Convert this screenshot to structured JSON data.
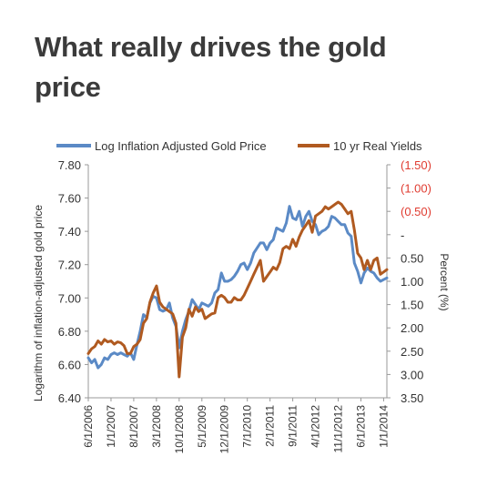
{
  "page": {
    "title": "What really drives the gold price"
  },
  "chart_data": {
    "type": "line",
    "title": "",
    "xlabel": "",
    "ylabel_left": "Logarithm of inflation-adjusted gold price",
    "ylabel_right": "Percent (%)",
    "left_axis": {
      "ticks": [
        "6.40",
        "6.60",
        "6.80",
        "7.00",
        "7.20",
        "7.40",
        "7.60",
        "7.80"
      ],
      "range": [
        6.4,
        7.8
      ]
    },
    "right_axis": {
      "tick_labels": [
        "(1.50)",
        "(1.00)",
        "(0.50)",
        "-",
        "0.50",
        "1.00",
        "1.50",
        "2.00",
        "2.50",
        "3.00",
        "3.50"
      ],
      "tick_values": [
        -1.5,
        -1.0,
        -0.5,
        0,
        0.5,
        1.0,
        1.5,
        2.0,
        2.5,
        3.0,
        3.5
      ],
      "inverted": true,
      "negative_label_color": "#e03c31"
    },
    "x_tick_labels": [
      "6/1/2006",
      "1/1/2007",
      "8/1/2007",
      "3/1/2008",
      "10/1/2008",
      "5/1/2009",
      "12/1/2009",
      "7/1/2010",
      "2/1/2011",
      "9/1/2011",
      "4/1/2012",
      "11/1/2012",
      "6/1/2013",
      "1/1/2014"
    ],
    "legend_position": "top",
    "grid": false,
    "series": [
      {
        "name": "Log Inflation Adjusted Gold Price",
        "axis": "left",
        "color": "#5b8ac6",
        "points": [
          [
            "2006-06",
            6.64
          ],
          [
            "2006-07",
            6.61
          ],
          [
            "2006-08",
            6.63
          ],
          [
            "2006-09",
            6.58
          ],
          [
            "2006-10",
            6.6
          ],
          [
            "2006-11",
            6.64
          ],
          [
            "2006-12",
            6.63
          ],
          [
            "2007-01",
            6.66
          ],
          [
            "2007-02",
            6.67
          ],
          [
            "2007-03",
            6.66
          ],
          [
            "2007-04",
            6.67
          ],
          [
            "2007-05",
            6.66
          ],
          [
            "2007-06",
            6.65
          ],
          [
            "2007-07",
            6.67
          ],
          [
            "2007-08",
            6.63
          ],
          [
            "2007-09",
            6.72
          ],
          [
            "2007-10",
            6.8
          ],
          [
            "2007-11",
            6.9
          ],
          [
            "2007-12",
            6.88
          ],
          [
            "2008-01",
            6.97
          ],
          [
            "2008-02",
            7.01
          ],
          [
            "2008-03",
            7.0
          ],
          [
            "2008-04",
            6.93
          ],
          [
            "2008-05",
            6.92
          ],
          [
            "2008-06",
            6.93
          ],
          [
            "2008-07",
            6.97
          ],
          [
            "2008-08",
            6.88
          ],
          [
            "2008-09",
            6.83
          ],
          [
            "2008-10",
            6.7
          ],
          [
            "2008-11",
            6.8
          ],
          [
            "2008-12",
            6.87
          ],
          [
            "2009-01",
            6.92
          ],
          [
            "2009-02",
            6.99
          ],
          [
            "2009-03",
            6.96
          ],
          [
            "2009-04",
            6.93
          ],
          [
            "2009-05",
            6.97
          ],
          [
            "2009-06",
            6.96
          ],
          [
            "2009-07",
            6.95
          ],
          [
            "2009-08",
            6.97
          ],
          [
            "2009-09",
            7.03
          ],
          [
            "2009-10",
            7.05
          ],
          [
            "2009-11",
            7.15
          ],
          [
            "2009-12",
            7.1
          ],
          [
            "2010-01",
            7.1
          ],
          [
            "2010-02",
            7.11
          ],
          [
            "2010-03",
            7.13
          ],
          [
            "2010-04",
            7.16
          ],
          [
            "2010-05",
            7.2
          ],
          [
            "2010-06",
            7.21
          ],
          [
            "2010-07",
            7.17
          ],
          [
            "2010-08",
            7.21
          ],
          [
            "2010-09",
            7.27
          ],
          [
            "2010-10",
            7.3
          ],
          [
            "2010-11",
            7.33
          ],
          [
            "2010-12",
            7.33
          ],
          [
            "2011-01",
            7.29
          ],
          [
            "2011-02",
            7.33
          ],
          [
            "2011-03",
            7.35
          ],
          [
            "2011-04",
            7.42
          ],
          [
            "2011-05",
            7.41
          ],
          [
            "2011-06",
            7.4
          ],
          [
            "2011-07",
            7.45
          ],
          [
            "2011-08",
            7.55
          ],
          [
            "2011-09",
            7.48
          ],
          [
            "2011-10",
            7.47
          ],
          [
            "2011-11",
            7.52
          ],
          [
            "2011-12",
            7.43
          ],
          [
            "2012-01",
            7.49
          ],
          [
            "2012-02",
            7.52
          ],
          [
            "2012-03",
            7.46
          ],
          [
            "2012-04",
            7.44
          ],
          [
            "2012-05",
            7.38
          ],
          [
            "2012-06",
            7.4
          ],
          [
            "2012-07",
            7.41
          ],
          [
            "2012-08",
            7.43
          ],
          [
            "2012-09",
            7.49
          ],
          [
            "2012-10",
            7.48
          ],
          [
            "2012-11",
            7.46
          ],
          [
            "2012-12",
            7.44
          ],
          [
            "2013-01",
            7.44
          ],
          [
            "2013-02",
            7.39
          ],
          [
            "2013-03",
            7.37
          ],
          [
            "2013-04",
            7.21
          ],
          [
            "2013-05",
            7.16
          ],
          [
            "2013-06",
            7.09
          ],
          [
            "2013-07",
            7.15
          ],
          [
            "2013-08",
            7.18
          ],
          [
            "2013-09",
            7.16
          ],
          [
            "2013-10",
            7.15
          ],
          [
            "2013-11",
            7.12
          ],
          [
            "2013-12",
            7.1
          ],
          [
            "2014-01",
            7.11
          ],
          [
            "2014-02",
            7.12
          ]
        ]
      },
      {
        "name": "10 yr Real Yields",
        "axis": "right",
        "color": "#b05a20",
        "points": [
          [
            "2006-06",
            2.55
          ],
          [
            "2006-07",
            2.45
          ],
          [
            "2006-08",
            2.4
          ],
          [
            "2006-09",
            2.28
          ],
          [
            "2006-10",
            2.35
          ],
          [
            "2006-11",
            2.25
          ],
          [
            "2006-12",
            2.3
          ],
          [
            "2007-01",
            2.28
          ],
          [
            "2007-02",
            2.35
          ],
          [
            "2007-03",
            2.3
          ],
          [
            "2007-04",
            2.32
          ],
          [
            "2007-05",
            2.38
          ],
          [
            "2007-06",
            2.55
          ],
          [
            "2007-07",
            2.55
          ],
          [
            "2007-08",
            2.4
          ],
          [
            "2007-09",
            2.35
          ],
          [
            "2007-10",
            2.25
          ],
          [
            "2007-11",
            1.9
          ],
          [
            "2007-12",
            1.8
          ],
          [
            "2008-01",
            1.45
          ],
          [
            "2008-02",
            1.25
          ],
          [
            "2008-03",
            1.1
          ],
          [
            "2008-04",
            1.45
          ],
          [
            "2008-05",
            1.55
          ],
          [
            "2008-06",
            1.6
          ],
          [
            "2008-07",
            1.65
          ],
          [
            "2008-08",
            1.7
          ],
          [
            "2008-09",
            1.9
          ],
          [
            "2008-10",
            3.05
          ],
          [
            "2008-11",
            2.2
          ],
          [
            "2008-12",
            2.0
          ],
          [
            "2009-01",
            1.6
          ],
          [
            "2009-02",
            1.75
          ],
          [
            "2009-03",
            1.55
          ],
          [
            "2009-04",
            1.65
          ],
          [
            "2009-05",
            1.6
          ],
          [
            "2009-06",
            1.8
          ],
          [
            "2009-07",
            1.75
          ],
          [
            "2009-08",
            1.7
          ],
          [
            "2009-09",
            1.68
          ],
          [
            "2009-10",
            1.35
          ],
          [
            "2009-11",
            1.3
          ],
          [
            "2009-12",
            1.35
          ],
          [
            "2010-01",
            1.45
          ],
          [
            "2010-02",
            1.45
          ],
          [
            "2010-03",
            1.35
          ],
          [
            "2010-04",
            1.4
          ],
          [
            "2010-05",
            1.4
          ],
          [
            "2010-06",
            1.3
          ],
          [
            "2010-07",
            1.15
          ],
          [
            "2010-08",
            1.0
          ],
          [
            "2010-09",
            0.85
          ],
          [
            "2010-10",
            0.7
          ],
          [
            "2010-11",
            0.55
          ],
          [
            "2010-12",
            1.0
          ],
          [
            "2011-01",
            0.9
          ],
          [
            "2011-02",
            0.8
          ],
          [
            "2011-03",
            0.7
          ],
          [
            "2011-04",
            0.75
          ],
          [
            "2011-05",
            0.6
          ],
          [
            "2011-06",
            0.3
          ],
          [
            "2011-07",
            0.25
          ],
          [
            "2011-08",
            0.3
          ],
          [
            "2011-09",
            0.1
          ],
          [
            "2011-10",
            0.25
          ],
          [
            "2011-11",
            0.05
          ],
          [
            "2011-12",
            -0.1
          ],
          [
            "2012-01",
            -0.2
          ],
          [
            "2012-02",
            -0.3
          ],
          [
            "2012-03",
            -0.05
          ],
          [
            "2012-04",
            -0.4
          ],
          [
            "2012-05",
            -0.45
          ],
          [
            "2012-06",
            -0.5
          ],
          [
            "2012-07",
            -0.6
          ],
          [
            "2012-08",
            -0.55
          ],
          [
            "2012-09",
            -0.6
          ],
          [
            "2012-10",
            -0.65
          ],
          [
            "2012-11",
            -0.7
          ],
          [
            "2012-12",
            -0.65
          ],
          [
            "2013-01",
            -0.55
          ],
          [
            "2013-02",
            -0.45
          ],
          [
            "2013-03",
            -0.5
          ],
          [
            "2013-04",
            -0.1
          ],
          [
            "2013-05",
            0.4
          ],
          [
            "2013-06",
            0.5
          ],
          [
            "2013-07",
            0.75
          ],
          [
            "2013-08",
            0.55
          ],
          [
            "2013-09",
            0.75
          ],
          [
            "2013-10",
            0.55
          ],
          [
            "2013-11",
            0.5
          ],
          [
            "2013-12",
            0.85
          ],
          [
            "2014-01",
            0.8
          ],
          [
            "2014-02",
            0.75
          ]
        ]
      }
    ]
  }
}
